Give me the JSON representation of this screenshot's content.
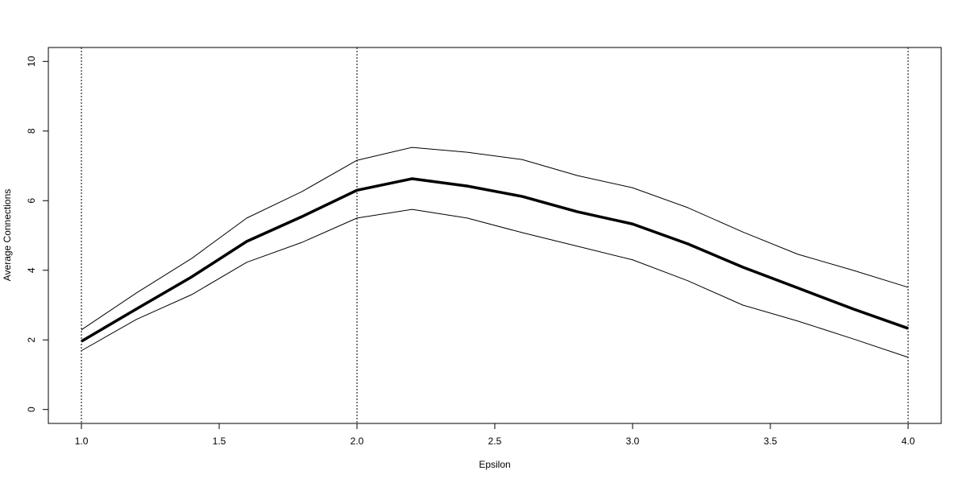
{
  "chart_data": {
    "type": "line",
    "x_label": "Epsilon",
    "y_label": "Average Connections",
    "x": [
      1.0,
      1.2,
      1.4,
      1.6,
      1.8,
      2.0,
      2.2,
      2.4,
      2.6,
      2.8,
      3.0,
      3.2,
      3.4,
      3.6,
      3.8,
      4.0
    ],
    "series": [
      {
        "color": "#000000",
        "values": [
          1.96,
          2.89,
          3.81,
          4.83,
          5.54,
          6.3,
          6.63,
          6.42,
          6.12,
          5.68,
          5.33,
          4.76,
          4.09,
          3.49,
          2.89,
          2.33
        ]
      },
      {
        "color": "#000000",
        "values": [
          2.29,
          3.35,
          4.34,
          5.5,
          6.26,
          7.16,
          7.53,
          7.39,
          7.18,
          6.72,
          6.37,
          5.8,
          5.1,
          4.46,
          4.0,
          3.51
        ]
      },
      {
        "color": "#000000",
        "values": [
          1.69,
          2.59,
          3.3,
          4.23,
          4.8,
          5.5,
          5.75,
          5.5,
          5.08,
          4.69,
          4.3,
          3.7,
          3.0,
          2.54,
          2.03,
          1.5
        ]
      }
    ],
    "vlines": [
      1,
      2,
      4
    ],
    "xlim": [
      0.88,
      4.12
    ],
    "xticks": [
      {
        "value": 1,
        "label": "1.0"
      },
      {
        "value": 1.5,
        "label": "1.5"
      },
      {
        "value": 2,
        "label": "2.0"
      },
      {
        "value": 2.5,
        "label": "2.5"
      },
      {
        "value": 3,
        "label": "3.0"
      },
      {
        "value": 3.5,
        "label": "3.5"
      },
      {
        "value": 4,
        "label": "4.0"
      }
    ],
    "ylim": [
      -0.4,
      10.4
    ],
    "yticks": [
      0,
      2,
      4,
      6,
      8,
      10
    ]
  }
}
